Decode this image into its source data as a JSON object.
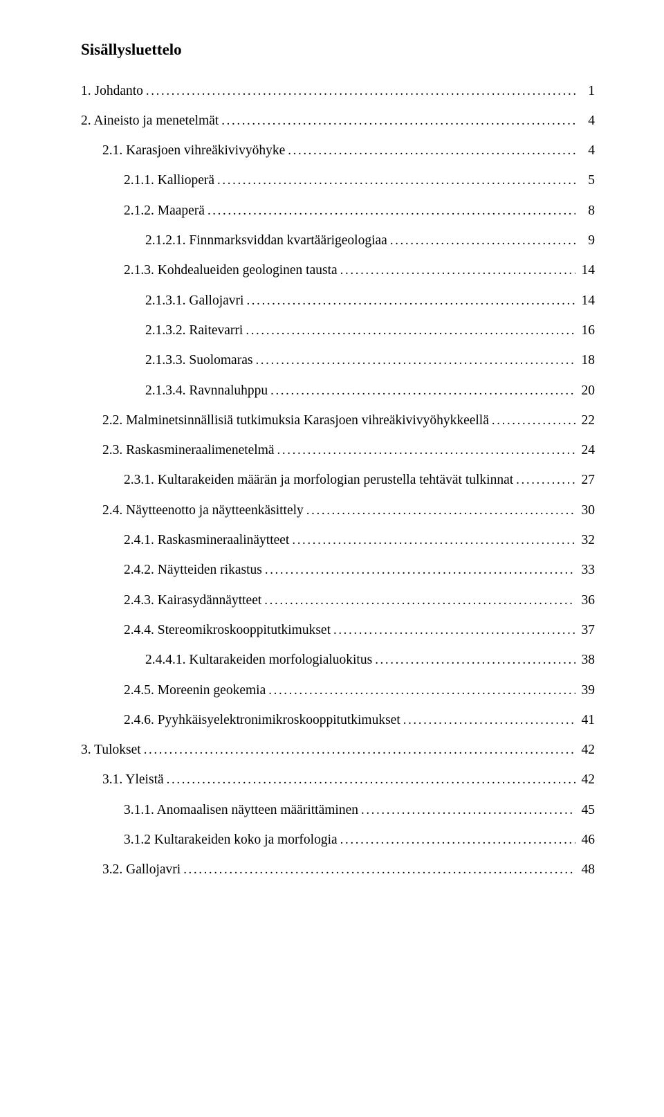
{
  "toc": {
    "title": "Sisällysluettelo",
    "entries": [
      {
        "label": "1. Johdanto",
        "page": "1",
        "level": 0
      },
      {
        "label": "2. Aineisto ja menetelmät",
        "page": "4",
        "level": 0
      },
      {
        "label": "2.1. Karasjoen vihreäkivivyöhyke",
        "page": "4",
        "level": 1
      },
      {
        "label": "2.1.1. Kallioperä",
        "page": "5",
        "level": 2
      },
      {
        "label": "2.1.2. Maaperä",
        "page": "8",
        "level": 2
      },
      {
        "label": "2.1.2.1. Finnmarksviddan kvartäärigeologiaa",
        "page": "9",
        "level": 3
      },
      {
        "label": "2.1.3. Kohdealueiden geologinen tausta",
        "page": "14",
        "level": 2
      },
      {
        "label": "2.1.3.1. Gallojavri",
        "page": "14",
        "level": 3
      },
      {
        "label": "2.1.3.2. Raitevarri",
        "page": "16",
        "level": 3
      },
      {
        "label": "2.1.3.3. Suolomaras",
        "page": "18",
        "level": 3
      },
      {
        "label": "2.1.3.4. Ravnnaluhppu",
        "page": "20",
        "level": 3
      },
      {
        "label": "2.2. Malminetsinnällisiä tutkimuksia Karasjoen vihreäkivivyöhykkeellä",
        "page": "22",
        "level": 1
      },
      {
        "label": "2.3. Raskasmineraalimenetelmä",
        "page": "24",
        "level": 1
      },
      {
        "label": "2.3.1. Kultarakeiden määrän ja morfologian perustella tehtävät tulkinnat",
        "page": "27",
        "level": 2
      },
      {
        "label": "2.4. Näytteenotto ja näytteenkäsittely",
        "page": "30",
        "level": 1
      },
      {
        "label": "2.4.1. Raskasmineraalinäytteet",
        "page": "32",
        "level": 2
      },
      {
        "label": "2.4.2. Näytteiden rikastus",
        "page": "33",
        "level": 2
      },
      {
        "label": "2.4.3. Kairasydännäytteet",
        "page": "36",
        "level": 2
      },
      {
        "label": "2.4.4. Stereomikroskooppitutkimukset",
        "page": "37",
        "level": 2
      },
      {
        "label": "2.4.4.1. Kultarakeiden morfologialuokitus",
        "page": "38",
        "level": 3
      },
      {
        "label": "2.4.5. Moreenin geokemia",
        "page": "39",
        "level": 2
      },
      {
        "label": "2.4.6. Pyyhkäisyelektronimikroskooppitutkimukset",
        "page": "41",
        "level": 2
      },
      {
        "label": "3. Tulokset",
        "page": "42",
        "level": 0
      },
      {
        "label": "3.1. Yleistä",
        "page": "42",
        "level": 1
      },
      {
        "label": "3.1.1. Anomaalisen näytteen määrittäminen",
        "page": "45",
        "level": 2
      },
      {
        "label": "3.1.2 Kultarakeiden koko ja morfologia",
        "page": "46",
        "level": 2
      },
      {
        "label": "3.2. Gallojavri",
        "page": "48",
        "level": 1
      }
    ]
  }
}
